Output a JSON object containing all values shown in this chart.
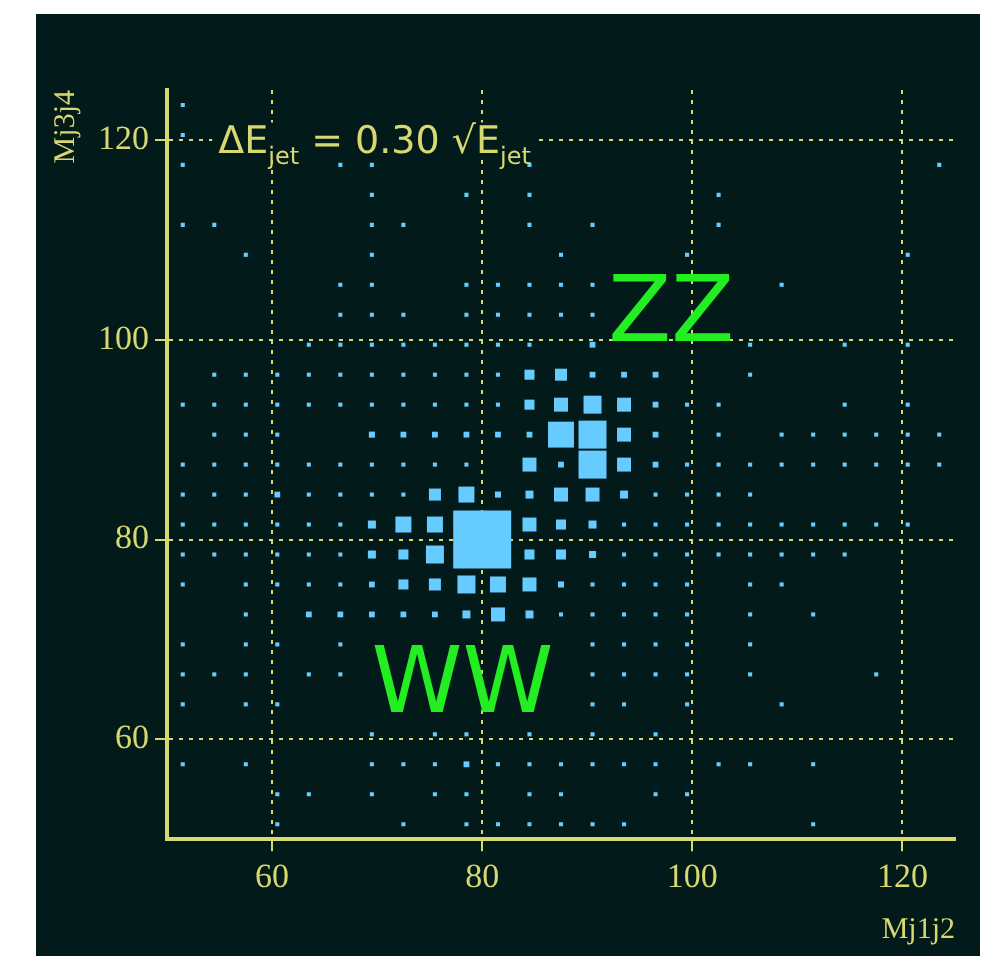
{
  "chart_data": {
    "type": "bubble",
    "xlabel": "Mj1j2",
    "ylabel": "Mj3j4",
    "xlim": [
      50,
      125
    ],
    "ylim": [
      50,
      125
    ],
    "xticks": [
      60,
      80,
      100,
      120
    ],
    "yticks": [
      60,
      80,
      100,
      120
    ],
    "grid": true,
    "marker": "square",
    "legend": false,
    "annotations": [
      "ΔE$_{jet}$ = 0.30 √E$_{jet}$",
      "ZZ",
      "WW"
    ],
    "series": [
      {
        "color": "#66ccff",
        "x": [
          60.5,
          72.5,
          78.5,
          81.5,
          84.5,
          87.5,
          90.5,
          93.5,
          111.5
        ],
        "values": [
          51.5,
          51.5,
          51.5,
          51.5,
          51.5,
          51.5,
          51.5,
          51.5,
          51.5
        ],
        "sizes": [
          0.005,
          0.005,
          0.005,
          0.005,
          0.005,
          0.005,
          0.005,
          0.005,
          0.005
        ]
      },
      {
        "color": "#66ccff",
        "x": [
          60.5,
          63.5,
          69.5,
          75.5,
          78.5,
          84.5,
          87.5,
          96.5,
          99.5
        ],
        "values": [
          54.5,
          54.5,
          54.5,
          54.5,
          54.5,
          54.5,
          54.5,
          54.5,
          54.5
        ],
        "sizes": [
          0.005,
          0.005,
          0.005,
          0.005,
          0.005,
          0.005,
          0.005,
          0.005,
          0.005
        ]
      },
      {
        "color": "#66ccff",
        "x": [
          51.5,
          57.5,
          69.5,
          72.5,
          75.5,
          78.5,
          81.5,
          84.5,
          87.5,
          90.5,
          93.5,
          96.5,
          102.5,
          105.5,
          111.5
        ],
        "values": [
          57.5,
          57.5,
          57.5,
          57.5,
          57.5,
          57.5,
          57.5,
          57.5,
          57.5,
          57.5,
          57.5,
          57.5,
          57.5,
          57.5,
          57.5
        ],
        "sizes": [
          0.005,
          0.005,
          0.005,
          0.005,
          0.005,
          0.01,
          0.005,
          0.005,
          0.005,
          0.005,
          0.005,
          0.005,
          0.005,
          0.005,
          0.005
        ]
      },
      {
        "color": "#66ccff",
        "x": [
          69.5,
          75.5,
          78.5,
          84.5,
          90.5,
          96.5
        ],
        "values": [
          60.5,
          60.5,
          60.5,
          60.5,
          60.5,
          60.5
        ],
        "sizes": [
          0.005,
          0.005,
          0.005,
          0.005,
          0.005,
          0.005
        ]
      },
      {
        "color": "#66ccff",
        "x": [
          51.5,
          57.5,
          60.5,
          90.5,
          93.5,
          99.5,
          108.5
        ],
        "values": [
          63.5,
          63.5,
          63.5,
          63.5,
          63.5,
          63.5,
          63.5
        ],
        "sizes": [
          0.005,
          0.005,
          0.005,
          0.005,
          0.005,
          0.005,
          0.005
        ]
      },
      {
        "color": "#66ccff",
        "x": [
          51.5,
          54.5,
          57.5,
          63.5,
          66.5,
          90.5,
          93.5,
          96.5,
          99.5,
          105.5,
          117.5
        ],
        "values": [
          66.5,
          66.5,
          66.5,
          66.5,
          66.5,
          66.5,
          66.5,
          66.5,
          66.5,
          66.5,
          66.5
        ],
        "sizes": [
          0.005,
          0.005,
          0.005,
          0.005,
          0.005,
          0.005,
          0.005,
          0.005,
          0.005,
          0.005,
          0.005
        ]
      },
      {
        "color": "#66ccff",
        "x": [
          51.5,
          57.5,
          60.5,
          66.5,
          90.5,
          93.5,
          96.5,
          99.5,
          105.5
        ],
        "values": [
          69.5,
          69.5,
          69.5,
          69.5,
          69.5,
          69.5,
          69.5,
          69.5,
          69.5
        ],
        "sizes": [
          0.005,
          0.005,
          0.005,
          0.005,
          0.005,
          0.005,
          0.005,
          0.005,
          0.005
        ]
      },
      {
        "color": "#66ccff",
        "x": [
          57.5,
          63.5,
          66.5,
          69.5,
          72.5,
          75.5,
          78.5,
          81.5,
          84.5,
          87.5,
          90.5,
          93.5,
          96.5,
          99.5,
          105.5,
          111.5
        ],
        "values": [
          72.5,
          72.5,
          72.5,
          72.5,
          72.5,
          72.5,
          72.5,
          72.5,
          72.5,
          72.5,
          72.5,
          72.5,
          72.5,
          72.5,
          72.5,
          72.5
        ],
        "sizes": [
          0.005,
          0.01,
          0.01,
          0.01,
          0.01,
          0.01,
          0.019,
          0.058,
          0.019,
          0.005,
          0.005,
          0.005,
          0.005,
          0.005,
          0.005,
          0.005
        ]
      },
      {
        "color": "#66ccff",
        "x": [
          51.5,
          57.5,
          60.5,
          63.5,
          66.5,
          69.5,
          72.5,
          75.5,
          78.5,
          81.5,
          84.5,
          87.5,
          90.5,
          93.5,
          96.5,
          99.5,
          105.5,
          108.5
        ],
        "values": [
          75.5,
          75.5,
          75.5,
          75.5,
          75.5,
          75.5,
          75.5,
          75.5,
          75.5,
          75.5,
          75.5,
          75.5,
          75.5,
          75.5,
          75.5,
          75.5,
          75.5,
          75.5
        ],
        "sizes": [
          0.005,
          0.005,
          0.005,
          0.005,
          0.005,
          0.01,
          0.03,
          0.043,
          0.096,
          0.076,
          0.058,
          0.011,
          0.005,
          0.005,
          0.005,
          0.005,
          0.005,
          0.005
        ]
      },
      {
        "color": "#66ccff",
        "x": [
          51.5,
          54.5,
          57.5,
          60.5,
          63.5,
          66.5,
          69.5,
          72.5,
          75.5,
          84.5,
          87.5,
          90.5,
          93.5,
          96.5,
          99.5,
          102.5,
          105.5,
          108.5,
          111.5,
          114.5
        ],
        "values": [
          78.5,
          78.5,
          78.5,
          78.5,
          78.5,
          78.5,
          78.5,
          78.5,
          78.5,
          78.5,
          78.5,
          78.5,
          78.5,
          78.5,
          78.5,
          78.5,
          78.5,
          78.5,
          78.5,
          78.5
        ],
        "sizes": [
          0.005,
          0.005,
          0.005,
          0.005,
          0.005,
          0.005,
          0.019,
          0.03,
          0.096,
          0.03,
          0.03,
          0.015,
          0.005,
          0.005,
          0.005,
          0.005,
          0.005,
          0.005,
          0.005,
          0.005
        ]
      },
      {
        "color": "#66ccff",
        "x": [
          80
        ],
        "values": [
          80
        ],
        "sizes": [
          1
        ]
      },
      {
        "color": "#66ccff",
        "x": [
          51.5,
          54.5,
          57.5,
          60.5,
          63.5,
          66.5,
          69.5,
          72.5,
          75.5,
          84.5,
          87.5,
          90.5,
          93.5,
          96.5,
          99.5,
          102.5,
          105.5,
          108.5,
          111.5,
          114.5,
          117.5,
          120.5
        ],
        "values": [
          81.5,
          81.5,
          81.5,
          81.5,
          81.5,
          81.5,
          81.5,
          81.5,
          81.5,
          81.5,
          81.5,
          81.5,
          81.5,
          81.5,
          81.5,
          81.5,
          81.5,
          81.5,
          81.5,
          81.5,
          81.5,
          81.5
        ],
        "sizes": [
          0.005,
          0.005,
          0.005,
          0.005,
          0.005,
          0.005,
          0.019,
          0.076,
          0.076,
          0.058,
          0.03,
          0.019,
          0.005,
          0.005,
          0.005,
          0.005,
          0.005,
          0.005,
          0.005,
          0.005,
          0.005,
          0.005
        ]
      },
      {
        "color": "#66ccff",
        "x": [
          51.5,
          54.5,
          57.5,
          60.5,
          63.5,
          66.5,
          69.5,
          72.5,
          75.5,
          78.5,
          81.5,
          84.5,
          87.5,
          90.5,
          93.5,
          96.5,
          99.5,
          102.5,
          105.5
        ],
        "values": [
          84.5,
          84.5,
          84.5,
          84.5,
          84.5,
          84.5,
          84.5,
          84.5,
          84.5,
          84.5,
          84.5,
          84.5,
          84.5,
          84.5,
          84.5,
          84.5,
          84.5,
          84.5,
          84.5
        ],
        "sizes": [
          0.005,
          0.005,
          0.005,
          0.01,
          0.005,
          0.005,
          0.005,
          0.005,
          0.043,
          0.076,
          0.011,
          0.019,
          0.058,
          0.058,
          0.019,
          0.005,
          0.005,
          0.005,
          0.005
        ]
      },
      {
        "color": "#66ccff",
        "x": [
          51.5,
          54.5,
          57.5,
          60.5,
          63.5,
          66.5,
          69.5,
          72.5,
          75.5,
          78.5,
          84.5,
          87.5,
          90.5,
          93.5,
          96.5,
          99.5,
          102.5,
          105.5,
          108.5,
          111.5,
          114.5,
          117.5,
          120.5,
          123.5
        ],
        "values": [
          87.5,
          87.5,
          87.5,
          87.5,
          87.5,
          87.5,
          87.5,
          87.5,
          87.5,
          87.5,
          87.5,
          87.5,
          87.5,
          87.5,
          87.5,
          87.5,
          87.5,
          87.5,
          87.5,
          87.5,
          87.5,
          87.5,
          87.5,
          87.5
        ],
        "sizes": [
          0.005,
          0.005,
          0.005,
          0.005,
          0.005,
          0.005,
          0.005,
          0.005,
          0.005,
          0.005,
          0.058,
          0.01,
          0.233,
          0.058,
          0.01,
          0.005,
          0.005,
          0.005,
          0.005,
          0.005,
          0.005,
          0.005,
          0.005,
          0.005
        ]
      },
      {
        "color": "#66ccff",
        "x": [
          54.5,
          57.5,
          60.5,
          69.5,
          72.5,
          75.5,
          78.5,
          81.5,
          84.5,
          87.5,
          90.5,
          93.5,
          96.5,
          102.5,
          108.5,
          111.5,
          114.5,
          117.5,
          120.5,
          123.5
        ],
        "values": [
          90.5,
          90.5,
          90.5,
          90.5,
          90.5,
          90.5,
          90.5,
          90.5,
          90.5,
          90.5,
          90.5,
          90.5,
          90.5,
          90.5,
          90.5,
          90.5,
          90.5,
          90.5,
          90.5,
          90.5
        ],
        "sizes": [
          0.005,
          0.005,
          0.005,
          0.011,
          0.01,
          0.01,
          0.01,
          0.01,
          0.01,
          0.2,
          0.233,
          0.058,
          0.01,
          0.005,
          0.005,
          0.005,
          0.005,
          0.005,
          0.005,
          0.005
        ]
      },
      {
        "color": "#66ccff",
        "x": [
          51.5,
          54.5,
          57.5,
          60.5,
          63.5,
          66.5,
          69.5,
          72.5,
          75.5,
          78.5,
          81.5,
          84.5,
          87.5,
          90.5,
          93.5,
          96.5,
          99.5,
          102.5,
          114.5,
          120.5
        ],
        "values": [
          93.5,
          93.5,
          93.5,
          93.5,
          93.5,
          93.5,
          93.5,
          93.5,
          93.5,
          93.5,
          93.5,
          93.5,
          93.5,
          93.5,
          93.5,
          93.5,
          93.5,
          93.5,
          93.5,
          93.5
        ],
        "sizes": [
          0.005,
          0.005,
          0.005,
          0.005,
          0.005,
          0.005,
          0.005,
          0.005,
          0.005,
          0.005,
          0.005,
          0.03,
          0.058,
          0.096,
          0.058,
          0.01,
          0.005,
          0.005,
          0.005,
          0.005
        ]
      },
      {
        "color": "#66ccff",
        "x": [
          54.5,
          57.5,
          60.5,
          63.5,
          66.5,
          69.5,
          72.5,
          75.5,
          78.5,
          81.5,
          84.5,
          87.5,
          90.5,
          93.5,
          96.5,
          105.5
        ],
        "values": [
          96.5,
          96.5,
          96.5,
          96.5,
          96.5,
          96.5,
          96.5,
          96.5,
          96.5,
          96.5,
          96.5,
          96.5,
          96.5,
          96.5,
          96.5,
          96.5
        ],
        "sizes": [
          0.005,
          0.005,
          0.005,
          0.005,
          0.005,
          0.005,
          0.005,
          0.005,
          0.005,
          0.005,
          0.03,
          0.043,
          0.01,
          0.01,
          0.01,
          0.005
        ]
      },
      {
        "color": "#66ccff",
        "x": [
          63.5,
          66.5,
          69.5,
          72.5,
          75.5,
          78.5,
          81.5,
          84.5,
          90.5,
          105.5,
          114.5,
          120.5
        ],
        "values": [
          99.5,
          99.5,
          99.5,
          99.5,
          99.5,
          99.5,
          99.5,
          99.5,
          99.5,
          99.5,
          99.5,
          99.5
        ],
        "sizes": [
          0.005,
          0.005,
          0.005,
          0.005,
          0.005,
          0.005,
          0.005,
          0.005,
          0.01,
          0.005,
          0.005,
          0.005
        ]
      },
      {
        "color": "#66ccff",
        "x": [
          66.5,
          69.5,
          72.5,
          78.5,
          81.5,
          84.5,
          87.5,
          90.5
        ],
        "values": [
          102.5,
          102.5,
          102.5,
          102.5,
          102.5,
          102.5,
          102.5,
          102.5
        ],
        "sizes": [
          0.005,
          0.005,
          0.005,
          0.005,
          0.005,
          0.005,
          0.005,
          0.005
        ]
      },
      {
        "color": "#66ccff",
        "x": [
          66.5,
          69.5,
          78.5,
          81.5,
          84.5,
          87.5,
          90.5,
          108.5
        ],
        "values": [
          105.5,
          105.5,
          105.5,
          105.5,
          105.5,
          105.5,
          105.5,
          105.5
        ],
        "sizes": [
          0.005,
          0.005,
          0.005,
          0.005,
          0.005,
          0.005,
          0.005,
          0.005
        ]
      },
      {
        "color": "#66ccff",
        "x": [
          57.5,
          69.5,
          87.5,
          99.5,
          120.5
        ],
        "values": [
          108.5,
          108.5,
          108.5,
          108.5,
          108.5
        ],
        "sizes": [
          0.005,
          0.005,
          0.005,
          0.005,
          0.005
        ]
      },
      {
        "color": "#66ccff",
        "x": [
          51.5,
          54.5,
          69.5,
          72.5,
          84.5,
          90.5,
          102.5
        ],
        "values": [
          111.5,
          111.5,
          111.5,
          111.5,
          111.5,
          111.5,
          111.5
        ],
        "sizes": [
          0.005,
          0.005,
          0.005,
          0.005,
          0.005,
          0.005,
          0.005
        ]
      },
      {
        "color": "#66ccff",
        "x": [
          69.5,
          78.5,
          84.5,
          102.5
        ],
        "values": [
          114.5,
          114.5,
          114.5,
          114.5
        ],
        "sizes": [
          0.005,
          0.005,
          0.005,
          0.005
        ]
      },
      {
        "color": "#66ccff",
        "x": [
          51.5,
          66.5,
          69.5,
          84.5,
          123.5
        ],
        "values": [
          117.5,
          117.5,
          117.5,
          117.5,
          117.5
        ],
        "sizes": [
          0.005,
          0.005,
          0.005,
          0.005,
          0.005
        ]
      },
      {
        "color": "#66ccff",
        "x": [
          51.5
        ],
        "values": [
          120.5
        ],
        "sizes": [
          0.005
        ]
      },
      {
        "color": "#66ccff",
        "x": [
          51.5
        ],
        "values": [
          123.5
        ],
        "sizes": [
          0.005
        ]
      }
    ]
  }
}
